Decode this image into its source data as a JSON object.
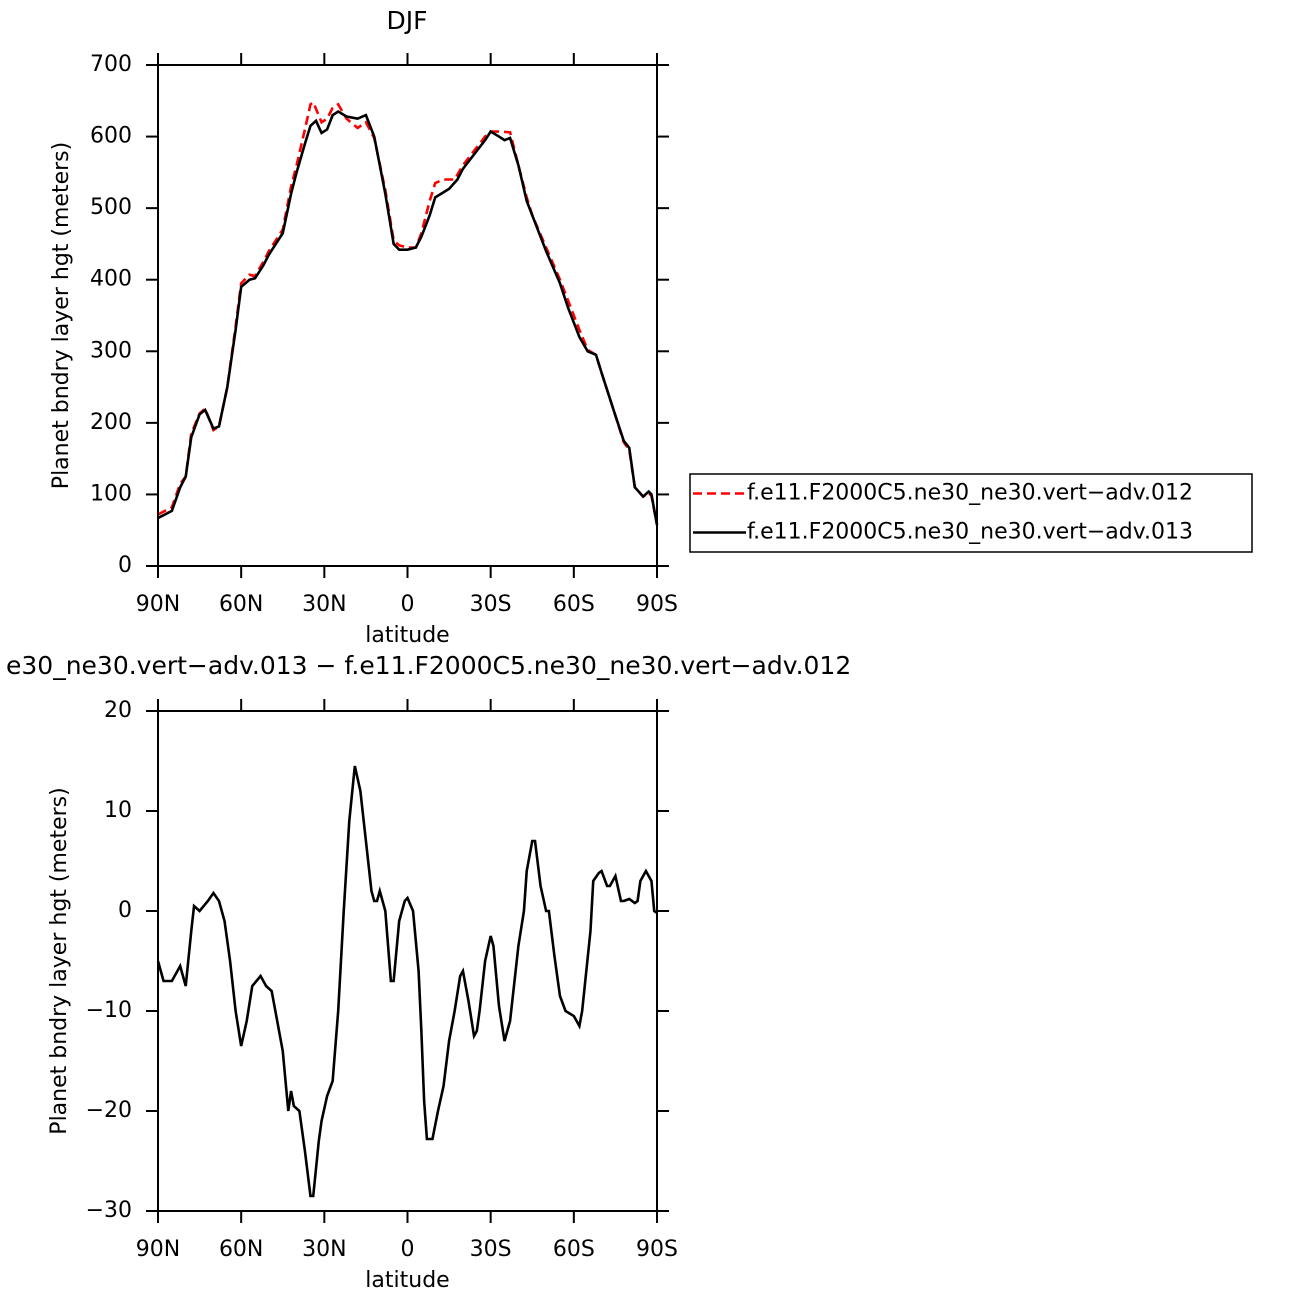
{
  "chart_data": [
    {
      "type": "line",
      "title": "DJF",
      "xlabel": "latitude",
      "ylabel": "Planet bndry layer hgt (meters)",
      "xlim": [
        90,
        -90
      ],
      "xticks": [
        {
          "value": 90,
          "label": "90N"
        },
        {
          "value": 60,
          "label": "60N"
        },
        {
          "value": 30,
          "label": "30N"
        },
        0,
        {
          "value": -30,
          "label": "30S"
        },
        {
          "value": -60,
          "label": "60S"
        },
        {
          "value": -90,
          "label": "90S"
        }
      ],
      "ylim": [
        0,
        700
      ],
      "yticks": [
        0,
        100,
        200,
        300,
        400,
        500,
        600,
        700
      ],
      "legend": "right",
      "series": [
        {
          "name": "f.e11.F2000C5.ne30_ne30.vert−adv.012",
          "color": "#ff0000",
          "linestyle": "dashed",
          "x": [
            90,
            85,
            82,
            80,
            78,
            75,
            73,
            70,
            68,
            65,
            62,
            60,
            57,
            55,
            52,
            50,
            45,
            42,
            40,
            37,
            35,
            34,
            31,
            29,
            27,
            25,
            22,
            18,
            15,
            12,
            8,
            5,
            3,
            0,
            -3,
            -5,
            -8,
            -10,
            -13,
            -17,
            -20,
            -25,
            -28,
            -30,
            -33,
            -37,
            -40,
            -43,
            -45,
            -50,
            -55,
            -58,
            -62,
            -65,
            -68,
            -70,
            -75,
            -78,
            -80,
            -82,
            -85,
            -87,
            -88,
            -90
          ],
          "values": [
            72,
            82,
            115,
            125,
            185,
            213,
            220,
            190,
            195,
            250,
            335,
            395,
            407,
            405,
            425,
            440,
            470,
            530,
            560,
            610,
            645,
            648,
            620,
            625,
            640,
            645,
            625,
            612,
            620,
            598,
            525,
            455,
            448,
            445,
            445,
            465,
            510,
            535,
            540,
            540,
            560,
            585,
            600,
            607,
            607,
            606,
            560,
            515,
            490,
            445,
            400,
            370,
            330,
            302,
            295,
            270,
            210,
            173,
            162,
            110,
            97,
            102,
            98,
            58
          ]
        },
        {
          "name": "f.e11.F2000C5.ne30_ne30.vert−adv.013",
          "color": "#000000",
          "linestyle": "solid",
          "x": [
            90,
            85,
            82,
            80,
            78,
            75,
            73,
            70,
            68,
            65,
            62,
            60,
            57,
            55,
            52,
            50,
            45,
            42,
            40,
            37,
            35,
            33,
            31,
            29,
            27,
            25,
            22,
            18,
            15,
            12,
            8,
            5,
            3,
            0,
            -3,
            -5,
            -8,
            -10,
            -15,
            -18,
            -20,
            -25,
            -28,
            -30,
            -33,
            -35,
            -37,
            -40,
            -43,
            -45,
            -50,
            -55,
            -58,
            -62,
            -65,
            -68,
            -70,
            -75,
            -78,
            -80,
            -82,
            -85,
            -87,
            -88,
            -90
          ],
          "values": [
            67,
            77,
            110,
            125,
            180,
            212,
            218,
            192,
            195,
            250,
            330,
            390,
            400,
            402,
            420,
            435,
            465,
            520,
            550,
            590,
            615,
            622,
            605,
            610,
            630,
            635,
            628,
            625,
            630,
            600,
            520,
            450,
            442,
            442,
            445,
            460,
            490,
            515,
            527,
            540,
            555,
            580,
            595,
            607,
            600,
            595,
            598,
            560,
            510,
            490,
            440,
            395,
            360,
            320,
            300,
            295,
            270,
            210,
            175,
            165,
            110,
            97,
            104,
            100,
            57
          ]
        }
      ]
    },
    {
      "type": "line",
      "title": "e30_ne30.vert−adv.013 − f.e11.F2000C5.ne30_ne30.vert−adv.012",
      "xlabel": "latitude",
      "ylabel": "Planet bndry layer hgt (meters)",
      "xlim": [
        90,
        -90
      ],
      "xticks": [
        {
          "value": 90,
          "label": "90N"
        },
        {
          "value": 60,
          "label": "60N"
        },
        {
          "value": 30,
          "label": "30N"
        },
        0,
        {
          "value": -30,
          "label": "30S"
        },
        {
          "value": -60,
          "label": "60S"
        },
        {
          "value": -90,
          "label": "90S"
        }
      ],
      "ylim": [
        -30,
        20
      ],
      "yticks": [
        20,
        10,
        0,
        {
          "value": -10,
          "label": "−10"
        },
        {
          "value": -20,
          "label": "−20"
        },
        {
          "value": -30,
          "label": "−30"
        }
      ],
      "series": [
        {
          "color": "#000000",
          "linestyle": "solid",
          "x": [
            90,
            88,
            85,
            83,
            82,
            80,
            78,
            77,
            75,
            72,
            70,
            68,
            66,
            64,
            62,
            60,
            58,
            56,
            53,
            51,
            49,
            47,
            45,
            43,
            42,
            41,
            39,
            37,
            35,
            34,
            32,
            31,
            29,
            27,
            25,
            23,
            21,
            19,
            17,
            15,
            13,
            12,
            11,
            10,
            8,
            6,
            5,
            3,
            1,
            0,
            -2,
            -4,
            -5,
            -6,
            -7,
            -9,
            -11,
            -13,
            -15,
            -17,
            -19,
            -20,
            -22,
            -24,
            -25,
            -26,
            -28,
            -30,
            -31,
            -33,
            -35,
            -37,
            -39,
            -40,
            -42,
            -43,
            -45,
            -46,
            -48,
            -50,
            -51,
            -53,
            -55,
            -57,
            -60,
            -61,
            -62,
            -63,
            -66,
            -67,
            -69,
            -70,
            -72,
            -73,
            -75,
            -77,
            -78,
            -80,
            -82,
            -83,
            -84,
            -86,
            -88,
            -89,
            -90
          ],
          "values": [
            -5,
            -7,
            -7,
            -6,
            -5.5,
            -7.5,
            -2,
            0.5,
            0,
            1,
            1.8,
            1,
            -1,
            -5,
            -10,
            -13.5,
            -11,
            -7.5,
            -6.5,
            -7.5,
            -8,
            -11,
            -14,
            -20,
            -18,
            -19.5,
            -20,
            -24,
            -28.5,
            -28.5,
            -23,
            -21,
            -18.5,
            -17,
            -10,
            0,
            9,
            14.5,
            12,
            7,
            2,
            1,
            1,
            2,
            0,
            -7,
            -7,
            -1,
            1,
            1.3,
            0,
            -6,
            -12,
            -19,
            -22.8,
            -22.8,
            -20,
            -17.5,
            -13,
            -10,
            -6.5,
            -6,
            -9,
            -12.5,
            -12,
            -10,
            -5,
            -2.5,
            -3.5,
            -9.5,
            -13,
            -11,
            -6,
            -3.5,
            0,
            4,
            7,
            7,
            2.5,
            0,
            0,
            -4.5,
            -8.5,
            -10,
            -10.5,
            -11,
            -11.5,
            -10,
            -2,
            3,
            3.8,
            4,
            2.5,
            2.5,
            3.5,
            1,
            1,
            1.2,
            0.8,
            1,
            3,
            4,
            3,
            0,
            -0.2
          ]
        }
      ]
    }
  ]
}
